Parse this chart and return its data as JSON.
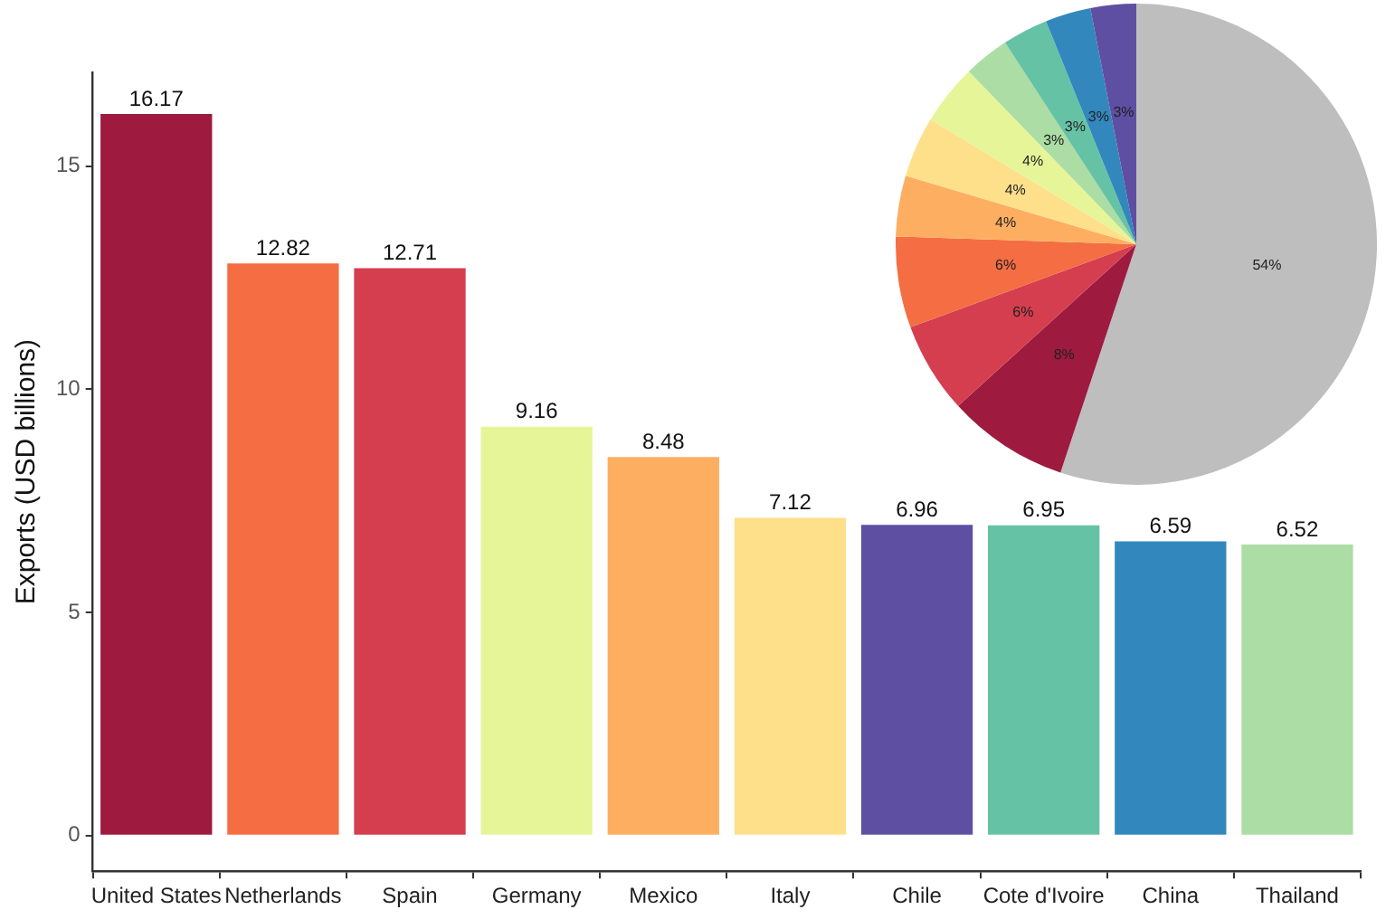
{
  "chart_data": [
    {
      "type": "bar",
      "ylabel": "Exports (USD billions)",
      "categories": [
        "United States",
        "Netherlands",
        "Spain",
        "Germany",
        "Mexico",
        "Italy",
        "Chile",
        "Cote d'Ivoire",
        "China",
        "Thailand"
      ],
      "values": [
        16.17,
        12.82,
        12.71,
        9.16,
        8.48,
        7.12,
        6.96,
        6.95,
        6.59,
        6.52
      ],
      "colors": [
        "#9e1a3f",
        "#f46d43",
        "#d53e4f",
        "#e6f598",
        "#fdae61",
        "#fee08b",
        "#5e4fa2",
        "#66c2a5",
        "#3288bd",
        "#abdda4"
      ],
      "ylim": [
        -0.8,
        17.1
      ],
      "yticks": [
        0,
        5,
        10,
        15
      ],
      "grid": false,
      "legend": false,
      "data_labels": true
    },
    {
      "type": "pie",
      "categories": [
        null,
        null,
        null,
        null,
        null,
        null,
        null,
        null,
        null,
        null,
        null
      ],
      "values": [
        54,
        8,
        6,
        6,
        4,
        4,
        4,
        3,
        3,
        3,
        3
      ],
      "value_labels": [
        "54%",
        "8%",
        "6%",
        "6%",
        "4%",
        "4%",
        "4%",
        "3%",
        "3%",
        "3%",
        "3%"
      ],
      "colors": [
        "#bebebe",
        "#9e1a3f",
        "#d53e4f",
        "#f46d43",
        "#fdae61",
        "#fee08b",
        "#e6f598",
        "#abdda4",
        "#66c2a5",
        "#3288bd",
        "#5e4fa2"
      ],
      "legend": false
    }
  ]
}
